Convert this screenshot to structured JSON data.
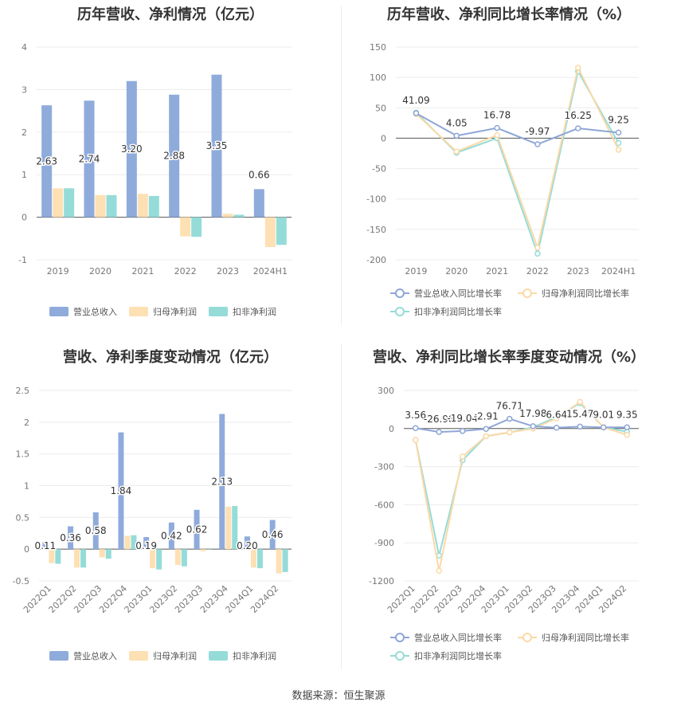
{
  "footer": {
    "source": "数据来源：恒生聚源"
  },
  "colors": {
    "revenue": "#8eabdb",
    "net_profit": "#fde0b3",
    "deducted": "#95dcd9"
  },
  "chart_data": [
    {
      "type": "bar",
      "title": "历年营收、净利情况（亿元）",
      "categories": [
        "2019",
        "2020",
        "2021",
        "2022",
        "2023",
        "2024H1"
      ],
      "ylim": [
        -1,
        4
      ],
      "yticks": [
        -1,
        0,
        1,
        2,
        3,
        4
      ],
      "grid": true,
      "legend_position": "bottom",
      "series": [
        {
          "name": "营业总收入",
          "values": [
            2.63,
            2.74,
            3.2,
            2.88,
            3.35,
            0.66
          ],
          "labels": [
            "2.63",
            "2.74",
            "3.20",
            "2.88",
            "3.35",
            "0.66"
          ]
        },
        {
          "name": "归母净利润",
          "values": [
            0.68,
            0.52,
            0.55,
            -0.45,
            0.08,
            -0.7
          ]
        },
        {
          "name": "扣非净利润",
          "values": [
            0.68,
            0.52,
            0.5,
            -0.46,
            0.06,
            -0.65
          ]
        }
      ]
    },
    {
      "type": "line",
      "title": "历年营收、净利同比增长率情况（%）",
      "categories": [
        "2019",
        "2020",
        "2021",
        "2022",
        "2023",
        "2024H1"
      ],
      "ylim": [
        -200,
        150
      ],
      "yticks": [
        -200,
        -150,
        -100,
        -50,
        0,
        50,
        100,
        150
      ],
      "grid": true,
      "legend_position": "bottom",
      "series": [
        {
          "name": "营业总收入同比增长率",
          "values": [
            41.09,
            4.05,
            16.78,
            -9.97,
            16.25,
            9.25
          ],
          "labels": [
            "41.09",
            "4.05",
            "16.78",
            "-9.97",
            "16.25",
            "9.25"
          ]
        },
        {
          "name": "归母净利润同比增长率",
          "values": [
            40,
            -22,
            5,
            -180,
            116,
            -19
          ]
        },
        {
          "name": "扣非净利润同比增长率",
          "values": [
            42,
            -24,
            0,
            -190,
            110,
            -8
          ]
        }
      ]
    },
    {
      "type": "bar",
      "title": "营收、净利季度变动情况（亿元）",
      "categories": [
        "2022Q1",
        "2022Q2",
        "2022Q3",
        "2022Q4",
        "2023Q1",
        "2023Q2",
        "2023Q3",
        "2023Q4",
        "2024Q1",
        "2024Q2"
      ],
      "ylim": [
        -0.5,
        2.5
      ],
      "yticks": [
        -0.5,
        0,
        0.5,
        1,
        1.5,
        2,
        2.5
      ],
      "grid": true,
      "legend_position": "bottom",
      "series": [
        {
          "name": "营业总收入",
          "values": [
            0.11,
            0.36,
            0.58,
            1.84,
            0.19,
            0.42,
            0.62,
            2.13,
            0.2,
            0.46
          ],
          "labels": [
            "0.11",
            "0.36",
            "0.58",
            "1.84",
            "0.19",
            "0.42",
            "0.62",
            "2.13",
            "0.20",
            "0.46"
          ]
        },
        {
          "name": "归母净利润",
          "values": [
            -0.22,
            -0.29,
            -0.13,
            0.21,
            -0.3,
            -0.25,
            -0.03,
            0.67,
            -0.29,
            -0.38
          ]
        },
        {
          "name": "扣非净利润",
          "values": [
            -0.23,
            -0.29,
            -0.15,
            0.22,
            -0.32,
            -0.27,
            -0.01,
            0.68,
            -0.3,
            -0.36
          ]
        }
      ]
    },
    {
      "type": "line",
      "title": "营收、净利同比增长率季度变动情况（%）",
      "categories": [
        "2022Q1",
        "2022Q2",
        "2022Q3",
        "2022Q4",
        "2023Q1",
        "2023Q2",
        "2023Q3",
        "2023Q4",
        "2024Q1",
        "2024Q2"
      ],
      "ylim": [
        -1200,
        300
      ],
      "yticks": [
        -1200,
        -900,
        -600,
        -300,
        0,
        300
      ],
      "grid": true,
      "legend_position": "bottom",
      "series": [
        {
          "name": "营业总收入同比增长率",
          "values": [
            3.56,
            -26.98,
            -19.04,
            -2.91,
            76.71,
            17.98,
            6.64,
            15.47,
            9.01,
            9.35
          ],
          "labels": [
            "3.56",
            "-26.98",
            "-19.04",
            "-2.91",
            "76.71",
            "17.98",
            "6.64",
            "15.47",
            "9.01",
            "9.35"
          ]
        },
        {
          "name": "归母净利润同比增长率",
          "values": [
            -90,
            -1120,
            -220,
            -60,
            -30,
            0,
            80,
            210,
            10,
            -50
          ]
        },
        {
          "name": "扣非净利润同比增长率",
          "values": [
            -90,
            -1000,
            -250,
            -60,
            -30,
            10,
            90,
            200,
            10,
            -25
          ]
        }
      ]
    }
  ]
}
